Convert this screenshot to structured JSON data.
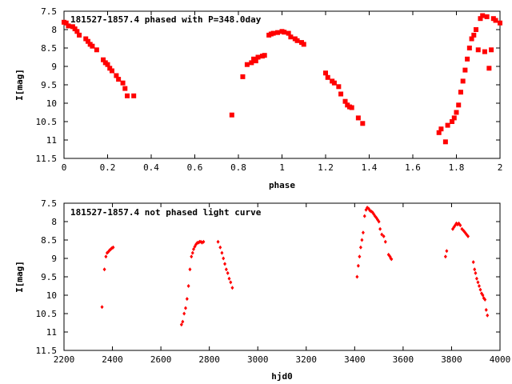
{
  "chart_data": [
    {
      "type": "scatter",
      "title": "181527-1857.4 phased with P=348.0day",
      "xlabel": "phase",
      "ylabel": "I[mag]",
      "xlim": [
        0,
        2
      ],
      "ylim": [
        7.5,
        11.5
      ],
      "y_inverted": true,
      "grid": false,
      "marker": "filled-square",
      "color": "#ff0000",
      "x_ticks": [
        0,
        0.2,
        0.4,
        0.6,
        0.8,
        1,
        1.2,
        1.4,
        1.6,
        1.8,
        2
      ],
      "x_tick_labels": [
        "0",
        "0.2",
        "0.4",
        "0.6",
        "0.8",
        "1",
        "1.2",
        "1.4",
        "1.6",
        "1.8",
        "2"
      ],
      "y_ticks": [
        7.5,
        8,
        8.5,
        9,
        9.5,
        10,
        10.5,
        11,
        11.5
      ],
      "y_tick_labels": [
        "7.5",
        "8",
        "8.5",
        "9",
        "9.5",
        "10",
        "10.5",
        "11",
        "11.5"
      ],
      "series": [
        {
          "x": [
            0.0,
            0.01,
            0.02,
            0.04,
            0.05,
            0.06,
            0.07,
            0.1,
            0.11,
            0.12,
            0.13,
            0.15,
            0.18,
            0.19,
            0.2,
            0.21,
            0.22,
            0.24,
            0.25,
            0.27,
            0.28,
            0.29,
            0.32,
            0.77,
            0.82,
            0.84,
            0.86,
            0.87,
            0.88,
            0.89,
            0.91,
            0.92,
            0.94,
            0.95,
            0.96,
            0.98,
            1.0,
            1.01,
            1.03,
            1.04,
            1.06,
            1.07,
            1.09,
            1.1,
            1.2,
            1.21,
            1.23,
            1.24,
            1.26,
            1.27,
            1.29,
            1.3,
            1.31,
            1.32,
            1.35,
            1.37,
            1.72,
            1.73,
            1.75,
            1.76,
            1.78,
            1.79,
            1.8,
            1.81,
            1.82,
            1.83,
            1.84,
            1.85,
            1.86,
            1.87,
            1.88,
            1.89,
            1.9,
            1.91,
            1.92,
            1.93,
            1.94,
            1.95,
            1.96,
            1.97,
            1.98,
            2.0
          ],
          "y": [
            7.8,
            7.82,
            7.9,
            7.92,
            7.98,
            8.05,
            8.15,
            8.25,
            8.32,
            8.4,
            8.45,
            8.55,
            8.82,
            8.9,
            8.95,
            9.05,
            9.12,
            9.25,
            9.35,
            9.45,
            9.6,
            9.8,
            9.8,
            10.32,
            9.28,
            8.95,
            8.9,
            8.8,
            8.85,
            8.75,
            8.72,
            8.7,
            8.15,
            8.12,
            8.1,
            8.08,
            8.05,
            8.07,
            8.1,
            8.2,
            8.25,
            8.3,
            8.35,
            8.4,
            9.18,
            9.3,
            9.4,
            9.45,
            9.55,
            9.75,
            9.95,
            10.05,
            10.1,
            10.12,
            10.4,
            10.55,
            10.8,
            10.7,
            11.05,
            10.6,
            10.5,
            10.4,
            10.25,
            10.05,
            9.7,
            9.4,
            9.1,
            8.8,
            8.5,
            8.25,
            8.15,
            8.0,
            8.55,
            7.7,
            7.62,
            8.6,
            7.65,
            9.05,
            8.55,
            7.7,
            7.75,
            7.82
          ]
        }
      ]
    },
    {
      "type": "scatter",
      "title": "181527-1857.4 not phased light curve",
      "xlabel": "hjd0",
      "ylabel": "I[mag]",
      "xlim": [
        2200,
        4000
      ],
      "ylim": [
        7.5,
        11.5
      ],
      "y_inverted": true,
      "grid": false,
      "marker": "filled-diamond",
      "color": "#ff0000",
      "x_ticks": [
        2200,
        2400,
        2600,
        2800,
        3000,
        3200,
        3400,
        3600,
        3800,
        4000
      ],
      "x_tick_labels": [
        "2200",
        "2400",
        "2600",
        "2800",
        "3000",
        "3200",
        "3400",
        "3600",
        "3800",
        "4000"
      ],
      "y_ticks": [
        7.5,
        8,
        8.5,
        9,
        9.5,
        10,
        10.5,
        11,
        11.5
      ],
      "y_tick_labels": [
        "7.5",
        "8",
        "8.5",
        "9",
        "9.5",
        "10",
        "10.5",
        "11",
        "11.5"
      ],
      "series": [
        {
          "x": [
            2357,
            2367,
            2373,
            2378,
            2383,
            2388,
            2393,
            2398,
            2403,
            2685,
            2690,
            2696,
            2702,
            2708,
            2714,
            2720,
            2726,
            2731,
            2735,
            2740,
            2745,
            2750,
            2755,
            2760,
            2765,
            2770,
            2776,
            2836,
            2845,
            2852,
            2858,
            2864,
            2870,
            2876,
            2882,
            2888,
            2895,
            3410,
            3415,
            3420,
            3425,
            3430,
            3435,
            3441,
            3447,
            3452,
            3458,
            3463,
            3468,
            3474,
            3479,
            3484,
            3490,
            3495,
            3500,
            3505,
            3512,
            3520,
            3527,
            3540,
            3546,
            3549,
            3552,
            3775,
            3780,
            3805,
            3810,
            3815,
            3820,
            3825,
            3830,
            3836,
            3843,
            3850,
            3856,
            3862,
            3868,
            3890,
            3895,
            3899,
            3904,
            3909,
            3914,
            3919,
            3924,
            3929,
            3933,
            3938,
            3943,
            3948
          ],
          "y": [
            10.32,
            9.3,
            8.95,
            8.85,
            8.82,
            8.78,
            8.75,
            8.72,
            8.7,
            10.8,
            10.72,
            10.5,
            10.35,
            10.1,
            9.75,
            9.3,
            8.95,
            8.85,
            8.75,
            8.68,
            8.62,
            8.58,
            8.57,
            8.55,
            8.55,
            8.57,
            8.55,
            8.55,
            8.7,
            8.85,
            9.0,
            9.15,
            9.3,
            9.4,
            9.55,
            9.65,
            9.8,
            9.5,
            9.2,
            8.95,
            8.7,
            8.5,
            8.3,
            7.85,
            7.68,
            7.62,
            7.65,
            7.7,
            7.72,
            7.75,
            7.8,
            7.85,
            7.9,
            7.95,
            8.0,
            8.2,
            8.35,
            8.4,
            8.55,
            8.9,
            8.95,
            9.0,
            9.02,
            8.95,
            8.8,
            8.2,
            8.15,
            8.1,
            8.05,
            8.08,
            8.05,
            8.1,
            8.2,
            8.25,
            8.3,
            8.35,
            8.4,
            9.1,
            9.3,
            9.4,
            9.55,
            9.65,
            9.75,
            9.85,
            9.95,
            10.0,
            10.08,
            10.12,
            10.4,
            10.55
          ]
        }
      ]
    }
  ]
}
